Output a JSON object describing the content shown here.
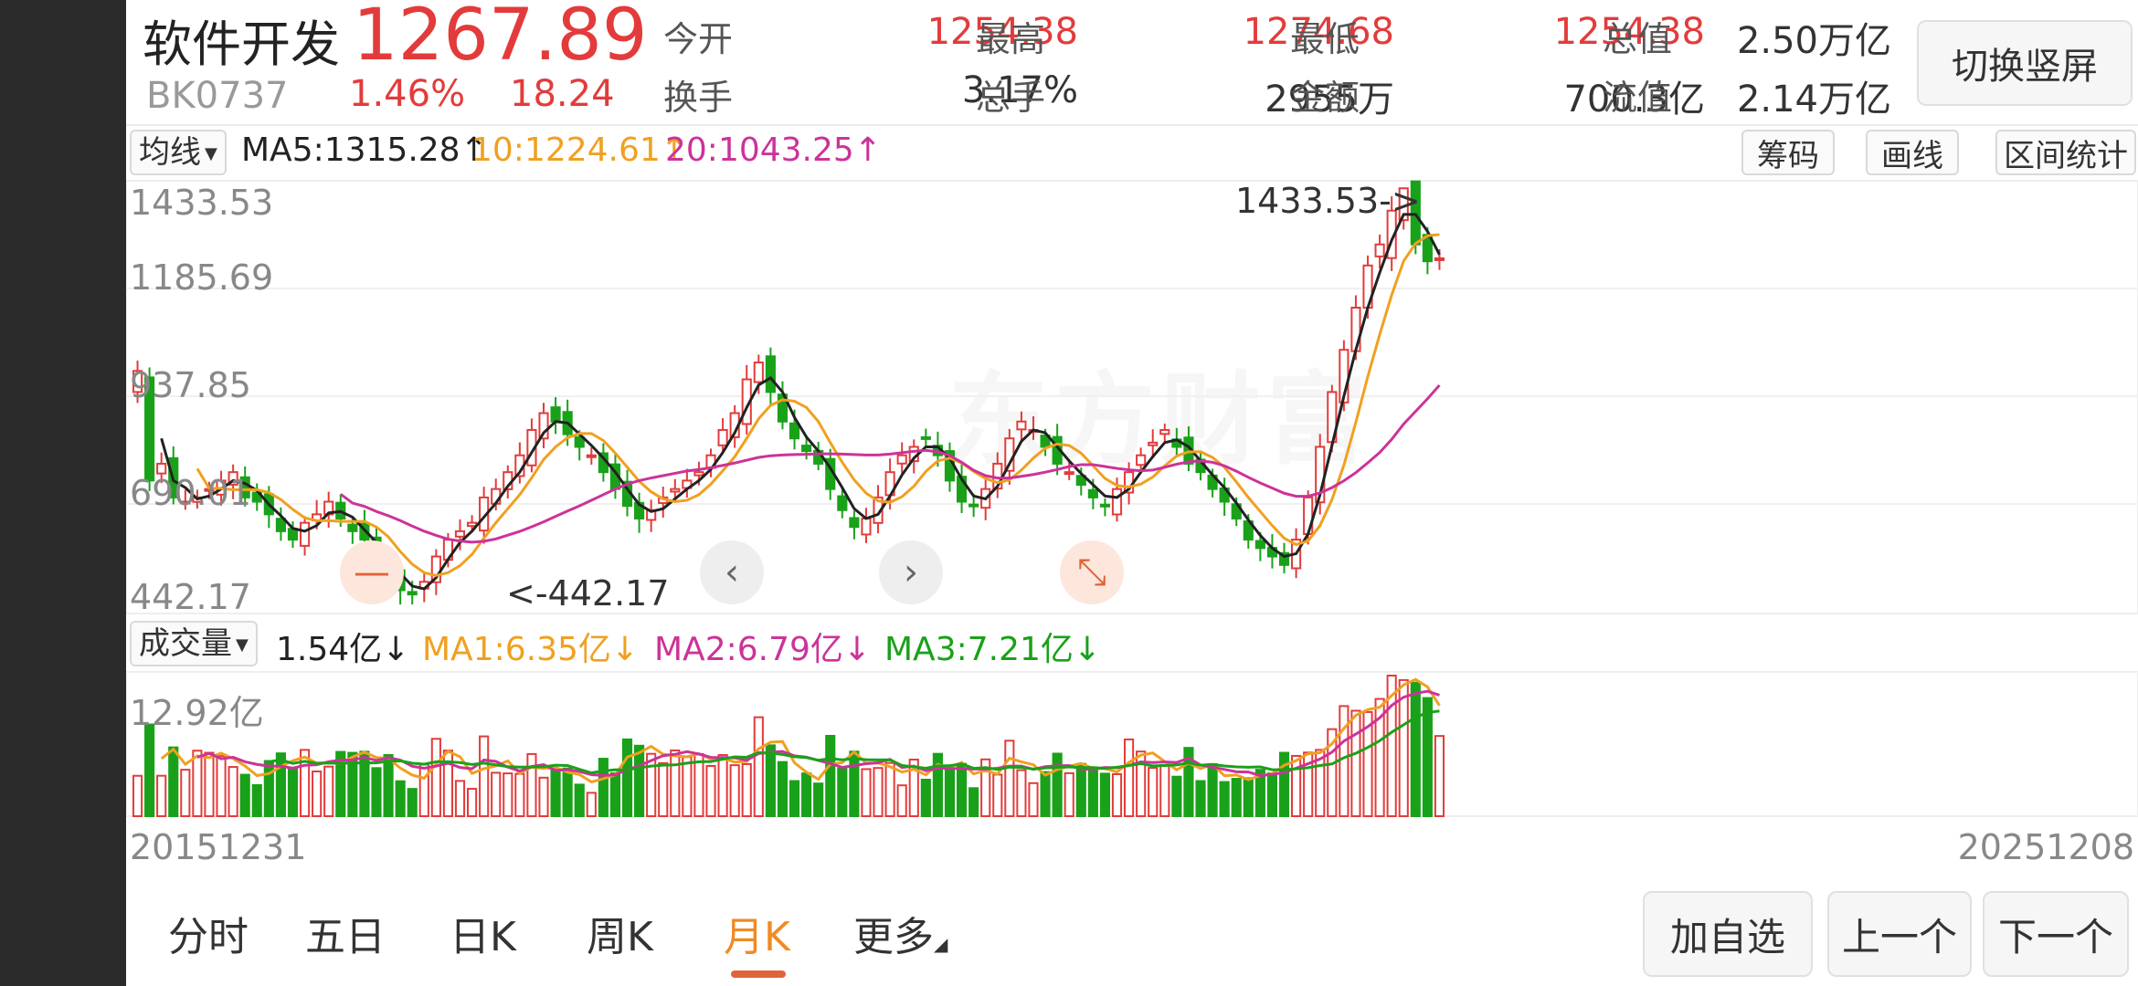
{
  "stock": {
    "name": "软件开发",
    "price": "1267.89",
    "code": "BK0737",
    "change_pct": "1.46%",
    "change": "18.24"
  },
  "quote": [
    {
      "label": "今开",
      "value": "1254.38",
      "red": true
    },
    {
      "label": "最高",
      "value": "1274.68",
      "red": true
    },
    {
      "label": "最低",
      "value": "1254.38",
      "red": true
    },
    {
      "label": "总值",
      "value": "2.50万亿",
      "red": false
    },
    {
      "label": "换手",
      "value": "3.17%",
      "red": false
    },
    {
      "label": "总手",
      "value": "2955万",
      "red": false
    },
    {
      "label": "金额",
      "value": "700.3亿",
      "red": false
    },
    {
      "label": "流值",
      "value": "2.14万亿",
      "red": false
    }
  ],
  "switch_label": "切换竖屏",
  "ma_bar": {
    "dropdown": "均线",
    "ma5": "MA5:1315.28↑",
    "ma10": "10:1224.61↑",
    "ma20": "20:1043.25↑",
    "tools": [
      "筹码",
      "画线",
      "区间统计"
    ]
  },
  "price_axis": [
    "1433.53",
    "1185.69",
    "937.85",
    "690.01",
    "442.17"
  ],
  "price_annotations": {
    "high": "1433.53->",
    "low": "<-442.17"
  },
  "watermark": "东方财富",
  "volume_bar": {
    "dropdown": "成交量",
    "current": "1.54亿↓",
    "ma1": "MA1:6.35亿↓",
    "ma2": "MA2:6.79亿↓",
    "ma3": "MA3:7.21亿↓",
    "axis_max": "12.92亿"
  },
  "dates": {
    "start": "20151231",
    "end": "20251208"
  },
  "tabs": [
    "分时",
    "五日",
    "日K",
    "周K",
    "月K",
    "更多"
  ],
  "active_tab": "月K",
  "bottom_buttons": [
    "加自选",
    "上一个",
    "下一个"
  ],
  "colors": {
    "up": "#e33b3b",
    "down": "#1aa11a",
    "ma5": "#222222",
    "ma10": "#f0a020",
    "ma20": "#cc3399",
    "accent": "#e0643a"
  },
  "chart_data": {
    "type": "candlestick",
    "price_range": [
      442.17,
      1433.53
    ],
    "volume_max_yi": 12.92,
    "monthly_close": [
      1000,
      740,
      780,
      700,
      690,
      700,
      720,
      740,
      760,
      700,
      690,
      660,
      620,
      600,
      640,
      660,
      690,
      650,
      620,
      600,
      560,
      520,
      480,
      470,
      500,
      560,
      600,
      620,
      640,
      700,
      720,
      760,
      800,
      860,
      900,
      880,
      850,
      820,
      800,
      760,
      720,
      680,
      650,
      670,
      700,
      720,
      740,
      760,
      800,
      860,
      900,
      980,
      1020,
      950,
      880,
      840,
      810,
      780,
      720,
      670,
      630,
      650,
      700,
      760,
      800,
      820,
      840,
      800,
      740,
      690,
      680,
      720,
      780,
      840,
      880,
      860,
      820,
      780,
      760,
      730,
      700,
      680,
      720,
      760,
      800,
      830,
      860,
      820,
      780,
      760,
      720,
      690,
      650,
      600,
      580,
      560,
      540,
      600,
      700,
      820,
      950,
      1050,
      1150,
      1250,
      1300,
      1380,
      1433,
      1300,
      1260,
      1267
    ]
  }
}
